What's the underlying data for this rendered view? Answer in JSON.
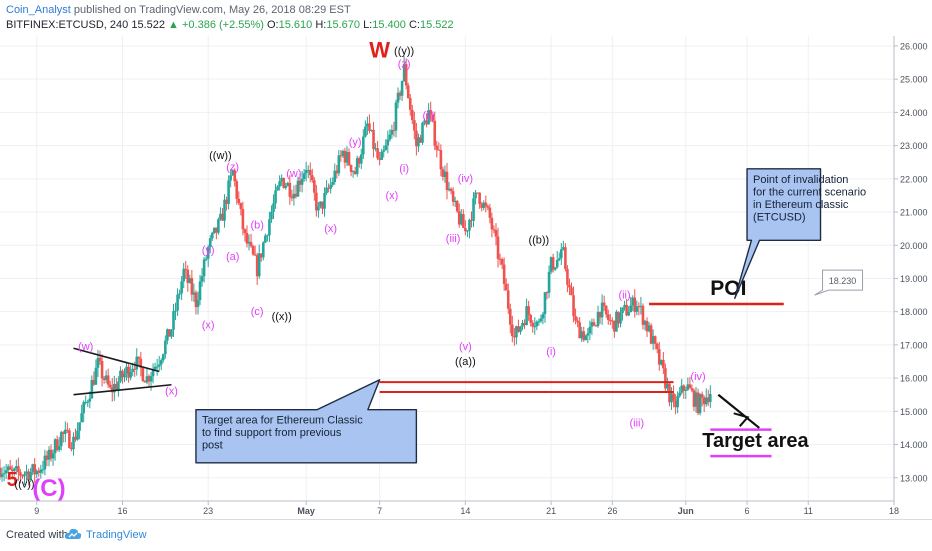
{
  "header": {
    "author": "Coin_Analyst",
    "published_text": "published on TradingView.com, May 26, 2018 08:29 EST",
    "symbol": "BITFINEX:ETCUSD, 240",
    "last": "15.522",
    "change": "▲ +0.386 (+2.55%)",
    "o_label": "O:",
    "o_value": "15.610",
    "h_label": "H:",
    "h_value": "15.670",
    "l_label": "L:",
    "l_value": "15.400",
    "c_label": "C:",
    "c_value": "15.522"
  },
  "footer": {
    "created_with": "Created with",
    "brand": "TradingView"
  },
  "colors": {
    "up_candle": "#26a69a",
    "down_candle": "#ef5350",
    "wave_label": "#e040fb",
    "line_red": "#e0201b",
    "target_line": "#e040fb",
    "callout_fill": "#a9c4f0",
    "callout_border": "#1e2c44"
  },
  "chart_data": {
    "type": "candlestick",
    "ylim": [
      12.3,
      26.3
    ],
    "x_domain": [
      "2018-04-06",
      "2018-06-18"
    ],
    "y_ticks": [
      "13.000",
      "14.000",
      "15.000",
      "16.000",
      "17.000",
      "18.000",
      "19.000",
      "20.000",
      "21.000",
      "22.000",
      "23.000",
      "24.000",
      "25.000",
      "26.000"
    ],
    "x_ticks": [
      {
        "date": "2018-04-09",
        "label": "9"
      },
      {
        "date": "2018-04-16",
        "label": "16"
      },
      {
        "date": "2018-04-23",
        "label": "23"
      },
      {
        "date": "2018-05-01",
        "label": "May"
      },
      {
        "date": "2018-05-07",
        "label": "7"
      },
      {
        "date": "2018-05-14",
        "label": "14"
      },
      {
        "date": "2018-05-21",
        "label": "21"
      },
      {
        "date": "2018-05-26",
        "label": "26"
      },
      {
        "date": "2018-06-01",
        "label": "Jun"
      },
      {
        "date": "2018-06-06",
        "label": "6"
      },
      {
        "date": "2018-06-11",
        "label": "11"
      },
      {
        "date": "2018-06-18",
        "label": "18"
      }
    ],
    "swings": [
      {
        "date": "2018-04-06",
        "price": 13.3
      },
      {
        "date": "2018-04-07",
        "price": 13.1
      },
      {
        "date": "2018-04-09",
        "price": 13.2
      },
      {
        "date": "2018-04-10",
        "price": 13.6
      },
      {
        "date": "2018-04-11",
        "price": 14.3
      },
      {
        "date": "2018-04-12",
        "price": 14.1
      },
      {
        "date": "2018-04-14",
        "price": 16.4
      },
      {
        "date": "2018-04-15",
        "price": 15.6
      },
      {
        "date": "2018-04-17",
        "price": 16.5
      },
      {
        "date": "2018-04-18",
        "price": 16.0
      },
      {
        "date": "2018-04-19",
        "price": 16.6
      },
      {
        "date": "2018-04-20",
        "price": 17.5
      },
      {
        "date": "2018-04-21",
        "price": 19.2
      },
      {
        "date": "2018-04-22",
        "price": 18.3
      },
      {
        "date": "2018-04-23",
        "price": 19.9
      },
      {
        "date": "2018-04-24",
        "price": 20.7
      },
      {
        "date": "2018-04-25",
        "price": 22.2
      },
      {
        "date": "2018-04-26",
        "price": 20.2
      },
      {
        "date": "2018-04-27",
        "price": 19.3
      },
      {
        "date": "2018-04-28",
        "price": 20.8
      },
      {
        "date": "2018-04-29",
        "price": 22.0
      },
      {
        "date": "2018-04-30",
        "price": 21.6
      },
      {
        "date": "2018-05-01",
        "price": 22.4
      },
      {
        "date": "2018-05-02",
        "price": 21.0
      },
      {
        "date": "2018-05-03",
        "price": 21.8
      },
      {
        "date": "2018-05-04",
        "price": 22.8
      },
      {
        "date": "2018-05-05",
        "price": 22.2
      },
      {
        "date": "2018-05-06",
        "price": 23.6
      },
      {
        "date": "2018-05-07",
        "price": 22.4
      },
      {
        "date": "2018-05-08",
        "price": 23.4
      },
      {
        "date": "2018-05-09",
        "price": 25.3
      },
      {
        "date": "2018-05-10",
        "price": 23.0
      },
      {
        "date": "2018-05-11",
        "price": 24.0
      },
      {
        "date": "2018-05-12",
        "price": 22.5
      },
      {
        "date": "2018-05-13",
        "price": 21.2
      },
      {
        "date": "2018-05-14",
        "price": 20.4
      },
      {
        "date": "2018-05-15",
        "price": 21.6
      },
      {
        "date": "2018-05-16",
        "price": 20.8
      },
      {
        "date": "2018-05-17",
        "price": 19.2
      },
      {
        "date": "2018-05-18",
        "price": 17.2
      },
      {
        "date": "2018-05-19",
        "price": 18.0
      },
      {
        "date": "2018-05-20",
        "price": 17.6
      },
      {
        "date": "2018-05-21",
        "price": 19.4
      },
      {
        "date": "2018-05-22",
        "price": 19.7
      },
      {
        "date": "2018-05-23",
        "price": 17.6
      },
      {
        "date": "2018-05-24",
        "price": 17.2
      },
      {
        "date": "2018-05-25",
        "price": 18.1
      },
      {
        "date": "2018-05-26",
        "price": 17.6
      },
      {
        "date": "2018-05-27",
        "price": 18.0
      },
      {
        "date": "2018-05-28",
        "price": 18.3
      },
      {
        "date": "2018-05-29",
        "price": 17.4
      },
      {
        "date": "2018-05-30",
        "price": 16.3
      },
      {
        "date": "2018-05-31",
        "price": 15.1
      },
      {
        "date": "2018-06-01",
        "price": 15.8
      },
      {
        "date": "2018-06-02",
        "price": 15.2
      },
      {
        "date": "2018-06-03",
        "price": 15.6
      }
    ],
    "last_price": 15.522,
    "wave_labels": [
      {
        "text": "5",
        "date": "2018-04-07",
        "price": 12.75,
        "color": "#e0201b",
        "size": 20,
        "weight": "bold"
      },
      {
        "text": "((v))",
        "date": "2018-04-08",
        "price": 12.7,
        "color": "#111111",
        "size": 11
      },
      {
        "text": "(C)",
        "date": "2018-04-10",
        "price": 12.45,
        "color": "#e040fb",
        "size": 24,
        "weight": "bold"
      },
      {
        "text": "(w)",
        "date": "2018-04-13",
        "price": 16.85,
        "color": "#e040fb",
        "size": 11
      },
      {
        "text": "(x)",
        "date": "2018-04-20",
        "price": 15.5,
        "color": "#e040fb",
        "size": 11
      },
      {
        "text": "(x)",
        "date": "2018-04-23",
        "price": 17.5,
        "color": "#e040fb",
        "size": 11
      },
      {
        "text": "(y)",
        "date": "2018-04-23",
        "price": 19.75,
        "color": "#e040fb",
        "size": 11
      },
      {
        "text": "(a)",
        "date": "2018-04-25",
        "price": 19.55,
        "color": "#e040fb",
        "size": 11
      },
      {
        "text": "(b)",
        "date": "2018-04-27",
        "price": 20.5,
        "color": "#e040fb",
        "size": 11
      },
      {
        "text": "(c)",
        "date": "2018-04-27",
        "price": 17.9,
        "color": "#e040fb",
        "size": 11
      },
      {
        "text": "((x))",
        "date": "2018-04-29",
        "price": 17.75,
        "color": "#111111",
        "size": 11
      },
      {
        "text": "((w))",
        "date": "2018-04-24",
        "price": 22.6,
        "color": "#111111",
        "size": 11
      },
      {
        "text": "(z)",
        "date": "2018-04-25",
        "price": 22.25,
        "color": "#e040fb",
        "size": 11
      },
      {
        "text": "(w)",
        "date": "2018-04-30",
        "price": 22.05,
        "color": "#e040fb",
        "size": 11
      },
      {
        "text": "(x)",
        "date": "2018-05-03",
        "price": 20.4,
        "color": "#e040fb",
        "size": 11
      },
      {
        "text": "(y)",
        "date": "2018-05-05",
        "price": 23.0,
        "color": "#e040fb",
        "size": 11
      },
      {
        "text": "(x)",
        "date": "2018-05-08",
        "price": 21.4,
        "color": "#e040fb",
        "size": 11
      },
      {
        "text": "W",
        "date": "2018-05-07",
        "price": 25.65,
        "color": "#e0201b",
        "size": 22,
        "weight": "bold"
      },
      {
        "text": "((y))",
        "date": "2018-05-09",
        "price": 25.75,
        "color": "#111111",
        "size": 11
      },
      {
        "text": "(z)",
        "date": "2018-05-09",
        "price": 25.35,
        "color": "#e040fb",
        "size": 11
      },
      {
        "text": "(ii)",
        "date": "2018-05-11",
        "price": 23.8,
        "color": "#e040fb",
        "size": 11
      },
      {
        "text": "(i)",
        "date": "2018-05-09",
        "price": 22.2,
        "color": "#e040fb",
        "size": 11
      },
      {
        "text": "(iv)",
        "date": "2018-05-14",
        "price": 21.9,
        "color": "#e040fb",
        "size": 11
      },
      {
        "text": "(iii)",
        "date": "2018-05-13",
        "price": 20.1,
        "color": "#e040fb",
        "size": 11
      },
      {
        "text": "(v)",
        "date": "2018-05-14",
        "price": 16.85,
        "color": "#e040fb",
        "size": 11
      },
      {
        "text": "((a))",
        "date": "2018-05-14",
        "price": 16.4,
        "color": "#111111",
        "size": 11
      },
      {
        "text": "((b))",
        "date": "2018-05-20",
        "price": 20.05,
        "color": "#111111",
        "size": 11
      },
      {
        "text": "(i)",
        "date": "2018-05-21",
        "price": 16.7,
        "color": "#e040fb",
        "size": 11
      },
      {
        "text": "(ii)",
        "date": "2018-05-27",
        "price": 18.4,
        "color": "#e040fb",
        "size": 11
      },
      {
        "text": "(iii)",
        "date": "2018-05-28",
        "price": 14.55,
        "color": "#e040fb",
        "size": 11
      },
      {
        "text": "(iv)",
        "date": "2018-06-02",
        "price": 15.95,
        "color": "#e040fb",
        "size": 11
      }
    ],
    "trendlines": [
      {
        "from": {
          "date": "2018-04-12",
          "price": 16.9
        },
        "to": {
          "date": "2018-04-19",
          "price": 16.2
        }
      },
      {
        "from": {
          "date": "2018-04-12",
          "price": 15.5
        },
        "to": {
          "date": "2018-04-20",
          "price": 15.8
        }
      }
    ],
    "support_zone": {
      "from": "2018-05-07",
      "to": "2018-05-31",
      "prices": [
        15.88,
        15.58
      ],
      "color": "#e0201b"
    },
    "poi": {
      "label": "POI",
      "price": 18.23,
      "from": "2018-05-29",
      "to": "2018-06-09",
      "color": "#e0201b",
      "label_date": "2018-06-03",
      "label_price": 18.5
    },
    "poi_price_tag": {
      "text": "18.230",
      "date": "2018-06-12",
      "price": 18.95
    },
    "target_area": {
      "label": "Target area",
      "prices": [
        14.45,
        13.65
      ],
      "from": "2018-06-03",
      "to": "2018-06-08",
      "label_date": "2018-06-03",
      "label_price": 14.05
    },
    "target_arrow": {
      "from": {
        "date": "2018-06-03",
        "price": 15.5
      },
      "to": {
        "date": "2018-06-07",
        "price": 14.5
      }
    },
    "callouts": [
      {
        "lines": [
          "Target area for Ethereum Classic",
          "to find support from previous",
          "post"
        ],
        "box": {
          "date_from": "2018-04-22",
          "date_to": "2018-05-10",
          "price_top": 15.05,
          "price_bottom": 13.45
        },
        "pointer_to": {
          "date": "2018-05-07",
          "price": 15.95
        }
      },
      {
        "lines": [
          "Point of invalidation",
          "for the current scenario",
          "in Ethereum classic",
          "(ETCUSD)"
        ],
        "box": {
          "date_from": "2018-06-06",
          "date_to": "2018-06-12",
          "price_top": 22.3,
          "price_bottom": 20.15
        },
        "pointer_to": {
          "date": "2018-06-05",
          "price": 18.4
        }
      }
    ]
  }
}
